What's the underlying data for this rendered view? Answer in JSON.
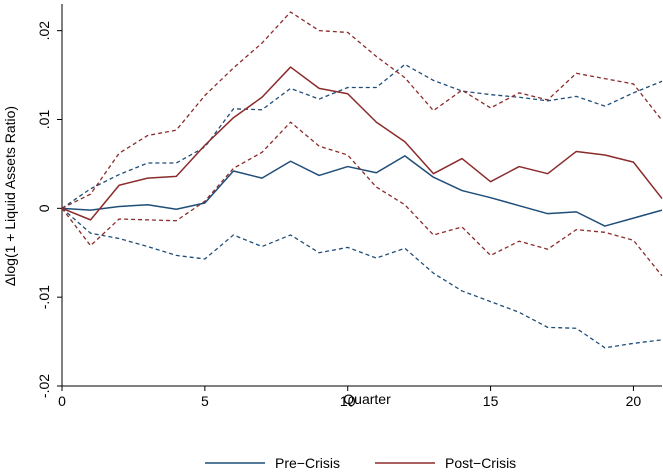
{
  "chart_data": {
    "type": "line",
    "xlabel": "Quarter",
    "ylabel": "Δlog(1 + Liquid Assets Ratio)",
    "xlim": [
      0,
      21
    ],
    "ylim": [
      -0.02,
      0.023
    ],
    "x_ticks": [
      0,
      5,
      10,
      15,
      20
    ],
    "x_tick_labels": [
      "0",
      "5",
      "10",
      "15",
      "20"
    ],
    "y_ticks": [
      -0.02,
      -0.01,
      0,
      0.01,
      0.02
    ],
    "y_tick_labels": [
      "-.02",
      "-.01",
      "0",
      ".01",
      ".02"
    ],
    "grid": false,
    "legend_position": "bottom",
    "x": [
      0,
      1,
      2,
      3,
      4,
      5,
      6,
      7,
      8,
      9,
      10,
      11,
      12,
      13,
      14,
      15,
      16,
      17,
      18,
      19,
      20,
      21
    ],
    "series": [
      {
        "name": "Pre−Crisis",
        "color": "#1f4e79",
        "style": "solid",
        "legend": true,
        "values": [
          0,
          -0.0002,
          0.0002,
          0.0004,
          -0.0001,
          0.0006,
          0.0042,
          0.0034,
          0.0053,
          0.0037,
          0.0047,
          0.004,
          0.0059,
          0.0035,
          0.002,
          0.0012,
          0.0003,
          -0.0006,
          -0.0004,
          -0.002,
          -0.0011,
          -0.0002
        ]
      },
      {
        "name": "Pre−Crisis upper CI",
        "color": "#1f4e79",
        "style": "dashed",
        "legend": false,
        "values": [
          0,
          0.0022,
          0.0038,
          0.0051,
          0.0051,
          0.0069,
          0.0112,
          0.0111,
          0.0135,
          0.0123,
          0.0136,
          0.0136,
          0.0162,
          0.0144,
          0.0132,
          0.0128,
          0.0125,
          0.0121,
          0.0126,
          0.0115,
          0.013,
          0.0143
        ]
      },
      {
        "name": "Pre−Crisis lower CI",
        "color": "#1f4e79",
        "style": "dashed",
        "legend": false,
        "values": [
          0,
          -0.0028,
          -0.0034,
          -0.0043,
          -0.0053,
          -0.0057,
          -0.003,
          -0.0043,
          -0.003,
          -0.005,
          -0.0044,
          -0.0056,
          -0.0045,
          -0.0073,
          -0.0093,
          -0.0105,
          -0.0117,
          -0.0134,
          -0.0135,
          -0.0157,
          -0.0152,
          -0.0148
        ]
      },
      {
        "name": "Post−Crisis",
        "color": "#8b2b2b",
        "style": "solid",
        "legend": true,
        "values": [
          0,
          -0.0013,
          0.0026,
          0.0034,
          0.0036,
          0.0071,
          0.0102,
          0.0125,
          0.0159,
          0.0135,
          0.0129,
          0.0097,
          0.0075,
          0.0039,
          0.0056,
          0.003,
          0.0047,
          0.0039,
          0.0064,
          0.006,
          0.0052,
          0.0011
        ]
      },
      {
        "name": "Post−Crisis upper CI",
        "color": "#8b2b2b",
        "style": "dashed",
        "legend": false,
        "values": [
          0,
          0.0016,
          0.0062,
          0.0082,
          0.0088,
          0.0127,
          0.0158,
          0.0186,
          0.0221,
          0.02,
          0.0198,
          0.0171,
          0.0147,
          0.011,
          0.0133,
          0.0113,
          0.013,
          0.0122,
          0.0152,
          0.0146,
          0.014,
          0.0099
        ]
      },
      {
        "name": "Post−Crisis lower CI",
        "color": "#8b2b2b",
        "style": "dashed",
        "legend": false,
        "values": [
          0,
          -0.0042,
          -0.0012,
          -0.0013,
          -0.0014,
          0.0008,
          0.0045,
          0.0063,
          0.0097,
          0.007,
          0.006,
          0.0024,
          0.0004,
          -0.003,
          -0.0021,
          -0.0053,
          -0.0037,
          -0.0046,
          -0.0024,
          -0.0027,
          -0.0036,
          -0.0076
        ]
      }
    ]
  }
}
